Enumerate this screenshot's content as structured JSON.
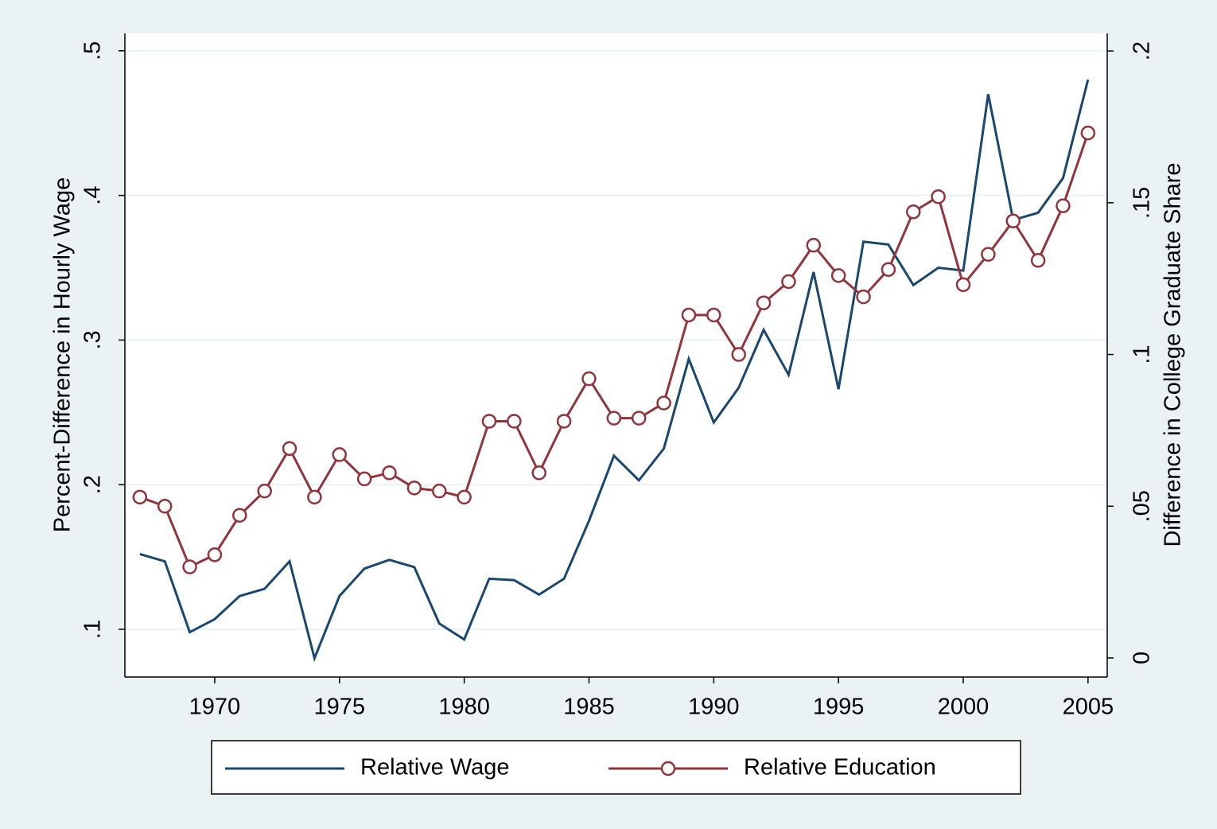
{
  "chart_data": {
    "type": "line",
    "x": [
      1967,
      1968,
      1969,
      1970,
      1971,
      1972,
      1973,
      1974,
      1975,
      1976,
      1977,
      1978,
      1979,
      1980,
      1981,
      1982,
      1983,
      1984,
      1985,
      1986,
      1987,
      1988,
      1989,
      1990,
      1991,
      1992,
      1993,
      1994,
      1995,
      1996,
      1997,
      1998,
      1999,
      2000,
      2001,
      2002,
      2003,
      2004,
      2005
    ],
    "series": [
      {
        "name": "Relative Wage",
        "color": "#1a476f",
        "axis": "y",
        "values": [
          0.152,
          0.147,
          0.098,
          0.107,
          0.123,
          0.128,
          0.147,
          0.08,
          0.123,
          0.142,
          0.148,
          0.143,
          0.104,
          0.093,
          0.135,
          0.134,
          0.124,
          0.135,
          0.175,
          0.22,
          0.203,
          0.225,
          0.287,
          0.243,
          0.267,
          0.307,
          0.276,
          0.347,
          0.266,
          0.368,
          0.366,
          0.338,
          0.35,
          0.348,
          0.47,
          0.383,
          0.388,
          0.412,
          0.48
        ]
      },
      {
        "name": "Relative Education",
        "color": "#90353b",
        "axis": "y2",
        "marker": "hollow-circle",
        "values": [
          0.053,
          0.05,
          0.03,
          0.034,
          0.047,
          0.055,
          0.069,
          0.053,
          0.067,
          0.059,
          0.061,
          0.056,
          0.055,
          0.053,
          0.078,
          0.078,
          0.061,
          0.078,
          0.092,
          0.079,
          0.079,
          0.084,
          0.113,
          0.113,
          0.1,
          0.117,
          0.124,
          0.136,
          0.126,
          0.119,
          0.128,
          0.147,
          0.152,
          0.123,
          0.133,
          0.144,
          0.131,
          0.149,
          0.173
        ]
      }
    ],
    "ylabel": "Percent-Difference in Hourly Wage",
    "y2label": "Difference in College Graduate Share",
    "xlim": [
      1966.4,
      2005.77
    ],
    "xticks": [
      1970,
      1975,
      1980,
      1985,
      1990,
      1995,
      2000,
      2005
    ],
    "ylim": [
      0.067,
      0.512
    ],
    "yticks": [
      {
        "value": 0.1,
        "label": ".1"
      },
      {
        "value": 0.2,
        "label": ".2"
      },
      {
        "value": 0.3,
        "label": ".3"
      },
      {
        "value": 0.4,
        "label": ".4"
      },
      {
        "value": 0.5,
        "label": ".5"
      }
    ],
    "y2lim": [
      -0.0063,
      0.2058
    ],
    "y2ticks": [
      0,
      {
        "value": 0.05,
        "label": ".05"
      },
      {
        "value": 0.1,
        "label": ".1"
      },
      {
        "value": 0.15,
        "label": ".15"
      },
      {
        "value": 0.2,
        "label": ".2"
      }
    ],
    "grid": true,
    "legend": "bottom"
  }
}
